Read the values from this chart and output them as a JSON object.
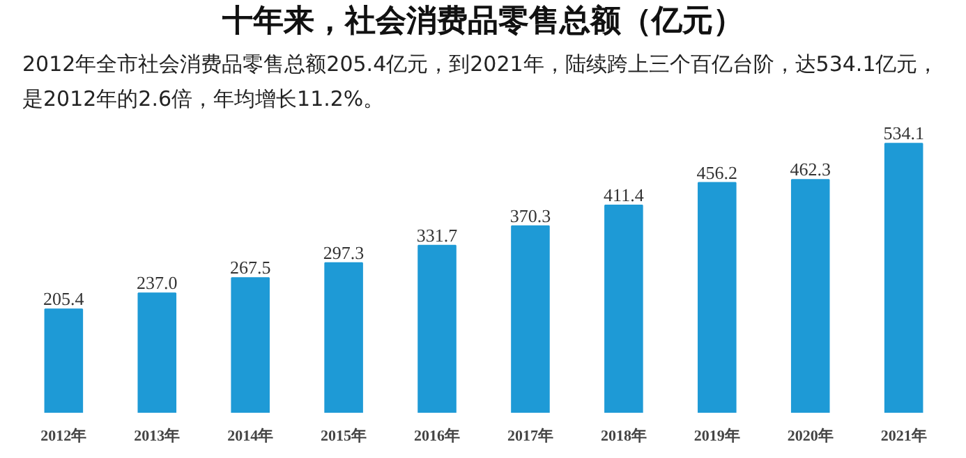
{
  "chart_data": {
    "type": "bar",
    "title": "十年来，社会消费品零售总额（亿元）",
    "subtitle": "2012年全市社会消费品零售总额205.4亿元，到2021年，陆续跨上三个百亿台阶，达534.1亿元，是2012年的2.6倍，年均增长11.2%。",
    "categories": [
      "2012年",
      "2013年",
      "2014年",
      "2015年",
      "2016年",
      "2017年",
      "2018年",
      "2019年",
      "2020年",
      "2021年"
    ],
    "values": [
      205.4,
      237.0,
      267.5,
      297.3,
      331.7,
      370.3,
      411.4,
      456.2,
      462.3,
      534.1
    ],
    "value_labels": [
      "205.4",
      "237.0",
      "267.5",
      "297.3",
      "331.7",
      "370.3",
      "411.4",
      "456.2",
      "462.3",
      "534.1"
    ],
    "color": "#1e9ad6",
    "grid": false
  }
}
